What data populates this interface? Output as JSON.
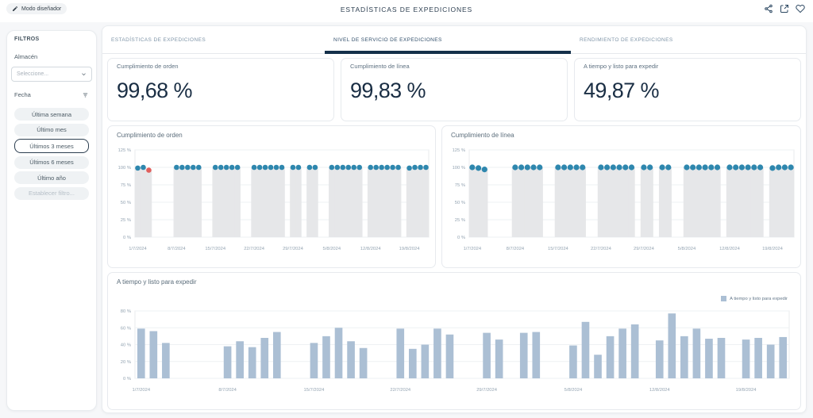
{
  "topbar": {
    "designer_mode_label": "Modo diseñador",
    "title": "ESTADÍSTICAS DE EXPEDICIONES"
  },
  "filters": {
    "title": "FILTROS",
    "warehouse_label": "Almacén",
    "warehouse_placeholder": "Seleccione...",
    "date_label": "Fecha",
    "buttons": [
      {
        "label": "Última semana",
        "selected": false,
        "muted": false
      },
      {
        "label": "Último mes",
        "selected": false,
        "muted": false
      },
      {
        "label": "Últimos 3 meses",
        "selected": true,
        "muted": false
      },
      {
        "label": "Últimos 6 meses",
        "selected": false,
        "muted": false
      },
      {
        "label": "Último año",
        "selected": false,
        "muted": false
      },
      {
        "label": "Establecer filtro...",
        "selected": false,
        "muted": true
      }
    ]
  },
  "tabs": [
    {
      "label": "ESTADÍSTICAS DE EXPEDICIONES",
      "active": false
    },
    {
      "label": "NIVEL DE SERVICIO DE EXPEDICIONES",
      "active": true
    },
    {
      "label": "RENDIMIENTO DE EXPEDICIONES",
      "active": false
    }
  ],
  "kpis": [
    {
      "label": "Cumplimiento de orden",
      "value": "99,68 %"
    },
    {
      "label": "Cumplimiento de línea",
      "value": "99,83 %"
    },
    {
      "label": "A tiempo y listo para expedir",
      "value": "49,87 %"
    }
  ],
  "colors": {
    "accent_navy": "#14304a",
    "dot_blue": "#2e87ae",
    "dot_red": "#e15f5c",
    "bar_gray": "#e6e7e9",
    "bar_steel": "#abbfd4",
    "grid": "#eef1f3",
    "plot_border": "#e8ebee",
    "axis_text": "#94a4b2"
  },
  "chart_data": [
    {
      "type": "bar",
      "kind": "service",
      "title": "Cumplimiento de orden",
      "ylim": [
        0,
        125
      ],
      "yticks": [
        0,
        25,
        50,
        75,
        100,
        125
      ],
      "ytick_suffix": " %",
      "days": 53,
      "xtick_days": [
        0,
        7,
        14,
        21,
        28,
        35,
        42,
        49
      ],
      "xtick_labels": [
        "1/7/2024",
        "8/7/2024",
        "15/7/2024",
        "22/7/2024",
        "29/7/2024",
        "5/8/2024",
        "12/8/2024",
        "19/8/2024"
      ],
      "points": [
        [
          0,
          99,
          "ok"
        ],
        [
          1,
          100,
          "ok"
        ],
        [
          2,
          96,
          "alert"
        ],
        [
          7,
          100,
          "ok"
        ],
        [
          8,
          100,
          "ok"
        ],
        [
          9,
          100,
          "ok"
        ],
        [
          10,
          100,
          "ok"
        ],
        [
          11,
          100,
          "ok"
        ],
        [
          14,
          100,
          "ok"
        ],
        [
          15,
          100,
          "ok"
        ],
        [
          16,
          100,
          "ok"
        ],
        [
          17,
          100,
          "ok"
        ],
        [
          18,
          100,
          "ok"
        ],
        [
          21,
          100,
          "ok"
        ],
        [
          22,
          100,
          "ok"
        ],
        [
          23,
          100,
          "ok"
        ],
        [
          24,
          100,
          "ok"
        ],
        [
          25,
          100,
          "ok"
        ],
        [
          26,
          100,
          "ok"
        ],
        [
          28,
          100,
          "ok"
        ],
        [
          29,
          100,
          "ok"
        ],
        [
          31,
          100,
          "ok"
        ],
        [
          32,
          100,
          "ok"
        ],
        [
          35,
          100,
          "ok"
        ],
        [
          36,
          100,
          "ok"
        ],
        [
          37,
          100,
          "ok"
        ],
        [
          38,
          100,
          "ok"
        ],
        [
          39,
          100,
          "ok"
        ],
        [
          40,
          100,
          "ok"
        ],
        [
          42,
          100,
          "ok"
        ],
        [
          43,
          100,
          "ok"
        ],
        [
          44,
          100,
          "ok"
        ],
        [
          45,
          100,
          "ok"
        ],
        [
          46,
          100,
          "ok"
        ],
        [
          47,
          100,
          "ok"
        ],
        [
          49,
          99,
          "ok"
        ],
        [
          50,
          100,
          "ok"
        ],
        [
          51,
          100,
          "ok"
        ],
        [
          52,
          100,
          "ok"
        ]
      ]
    },
    {
      "type": "bar",
      "kind": "service",
      "title": "Cumplimiento de línea",
      "ylim": [
        0,
        125
      ],
      "yticks": [
        0,
        25,
        50,
        75,
        100,
        125
      ],
      "ytick_suffix": " %",
      "days": 53,
      "xtick_days": [
        0,
        7,
        14,
        21,
        28,
        35,
        42,
        49
      ],
      "xtick_labels": [
        "1/7/2024",
        "8/7/2024",
        "15/7/2024",
        "22/7/2024",
        "29/7/2024",
        "5/8/2024",
        "12/8/2024",
        "19/8/2024"
      ],
      "points": [
        [
          0,
          100,
          "ok"
        ],
        [
          1,
          99,
          "ok"
        ],
        [
          2,
          97,
          "ok"
        ],
        [
          7,
          100,
          "ok"
        ],
        [
          8,
          100,
          "ok"
        ],
        [
          9,
          100,
          "ok"
        ],
        [
          10,
          100,
          "ok"
        ],
        [
          11,
          100,
          "ok"
        ],
        [
          14,
          100,
          "ok"
        ],
        [
          15,
          100,
          "ok"
        ],
        [
          16,
          100,
          "ok"
        ],
        [
          17,
          100,
          "ok"
        ],
        [
          18,
          100,
          "ok"
        ],
        [
          21,
          100,
          "ok"
        ],
        [
          22,
          100,
          "ok"
        ],
        [
          23,
          100,
          "ok"
        ],
        [
          24,
          100,
          "ok"
        ],
        [
          25,
          100,
          "ok"
        ],
        [
          26,
          100,
          "ok"
        ],
        [
          28,
          100,
          "ok"
        ],
        [
          29,
          100,
          "ok"
        ],
        [
          31,
          100,
          "ok"
        ],
        [
          32,
          100,
          "ok"
        ],
        [
          35,
          100,
          "ok"
        ],
        [
          36,
          100,
          "ok"
        ],
        [
          37,
          100,
          "ok"
        ],
        [
          38,
          100,
          "ok"
        ],
        [
          39,
          100,
          "ok"
        ],
        [
          40,
          100,
          "ok"
        ],
        [
          42,
          100,
          "ok"
        ],
        [
          43,
          100,
          "ok"
        ],
        [
          44,
          100,
          "ok"
        ],
        [
          45,
          100,
          "ok"
        ],
        [
          46,
          100,
          "ok"
        ],
        [
          47,
          100,
          "ok"
        ],
        [
          49,
          99,
          "ok"
        ],
        [
          50,
          100,
          "ok"
        ],
        [
          51,
          100,
          "ok"
        ],
        [
          52,
          100,
          "ok"
        ]
      ]
    },
    {
      "type": "bar",
      "kind": "volume",
      "title": "A tiempo y listo para expedir",
      "legend": [
        {
          "label": "A tiempo y listo para expedir",
          "color": "#abbfd4"
        }
      ],
      "ylim": [
        0,
        80
      ],
      "yticks": [
        0,
        20,
        40,
        60,
        80
      ],
      "ytick_suffix": " %",
      "days": 53,
      "xtick_days": [
        0,
        7,
        14,
        21,
        28,
        35,
        42,
        49
      ],
      "xtick_labels": [
        "1/7/2024",
        "8/7/2024",
        "15/7/2024",
        "22/7/2024",
        "29/7/2024",
        "5/8/2024",
        "12/8/2024",
        "19/8/2024"
      ],
      "points": [
        [
          0,
          59
        ],
        [
          1,
          56
        ],
        [
          2,
          42
        ],
        [
          7,
          38
        ],
        [
          8,
          44
        ],
        [
          9,
          37
        ],
        [
          10,
          48
        ],
        [
          11,
          55
        ],
        [
          14,
          42
        ],
        [
          15,
          50
        ],
        [
          16,
          60
        ],
        [
          17,
          44
        ],
        [
          18,
          36
        ],
        [
          21,
          59
        ],
        [
          22,
          35
        ],
        [
          23,
          40
        ],
        [
          24,
          59
        ],
        [
          25,
          52
        ],
        [
          28,
          54
        ],
        [
          29,
          46
        ],
        [
          31,
          54
        ],
        [
          32,
          55
        ],
        [
          35,
          39
        ],
        [
          36,
          67
        ],
        [
          37,
          28
        ],
        [
          38,
          50
        ],
        [
          39,
          59
        ],
        [
          40,
          64
        ],
        [
          42,
          45
        ],
        [
          43,
          77
        ],
        [
          44,
          50
        ],
        [
          45,
          59
        ],
        [
          46,
          47
        ],
        [
          47,
          48
        ],
        [
          49,
          46
        ],
        [
          50,
          48
        ],
        [
          51,
          40
        ],
        [
          52,
          49
        ]
      ]
    }
  ]
}
